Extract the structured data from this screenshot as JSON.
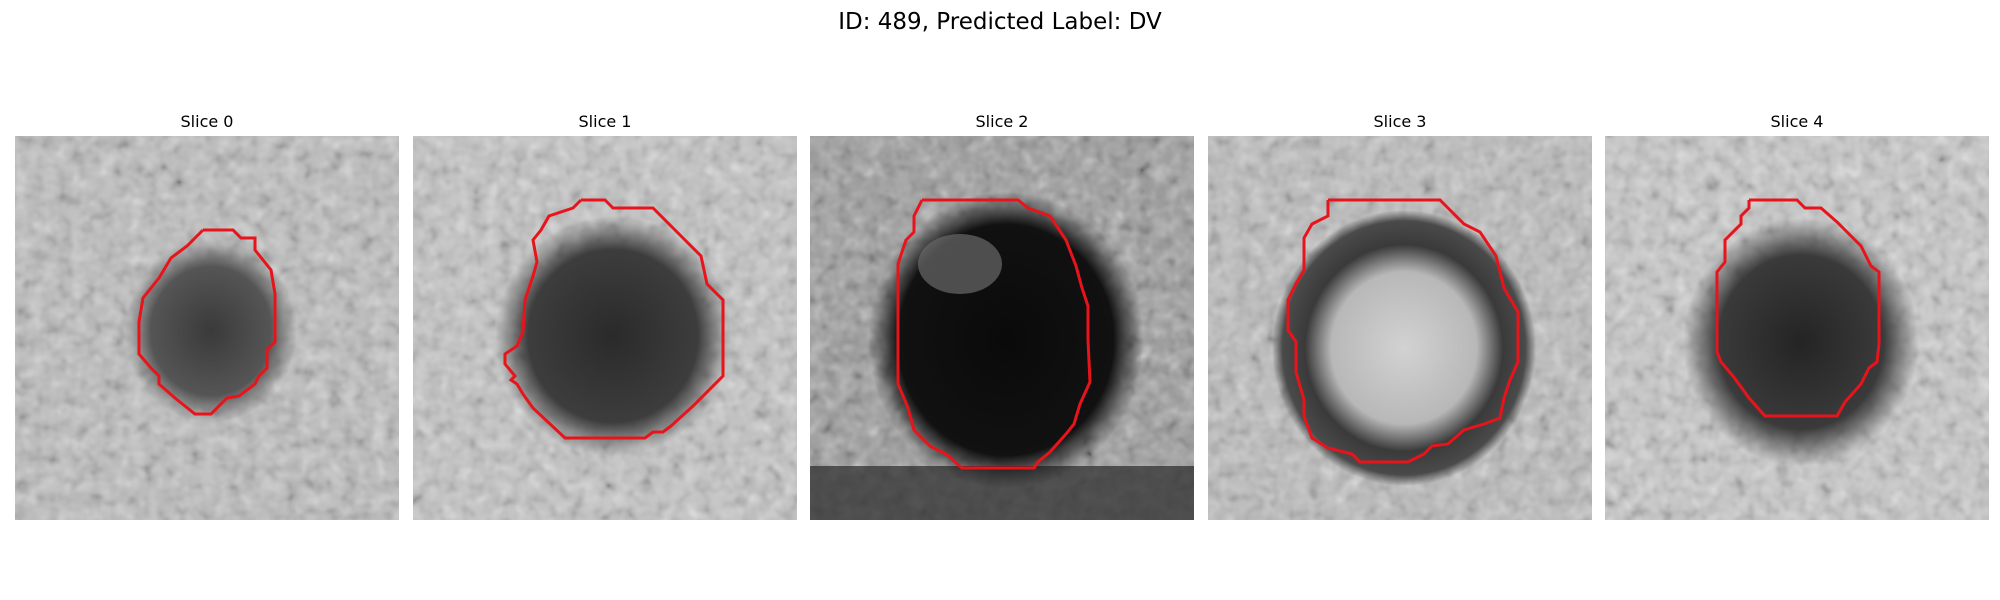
{
  "figure": {
    "title": "ID: 489, Predicted Label: DV"
  },
  "panels": [
    {
      "title": "Slice 0",
      "image_description": "grayscale patch with dark round region in center",
      "roi": "red-contour-outline"
    },
    {
      "title": "Slice 1",
      "image_description": "grayscale patch with dark round region",
      "roi": "red-contour-outline"
    },
    {
      "title": "Slice 2",
      "image_description": "grayscale patch with very dark round region",
      "roi": "red-contour-outline"
    },
    {
      "title": "Slice 3",
      "image_description": "grayscale patch with brighter round region surrounded by dark ring",
      "roi": "red-contour-outline"
    },
    {
      "title": "Slice 4",
      "image_description": "grayscale patch with dark round region",
      "roi": "red-contour-outline"
    }
  ],
  "colors": {
    "contour": "#e8141c",
    "background": "#ffffff"
  }
}
